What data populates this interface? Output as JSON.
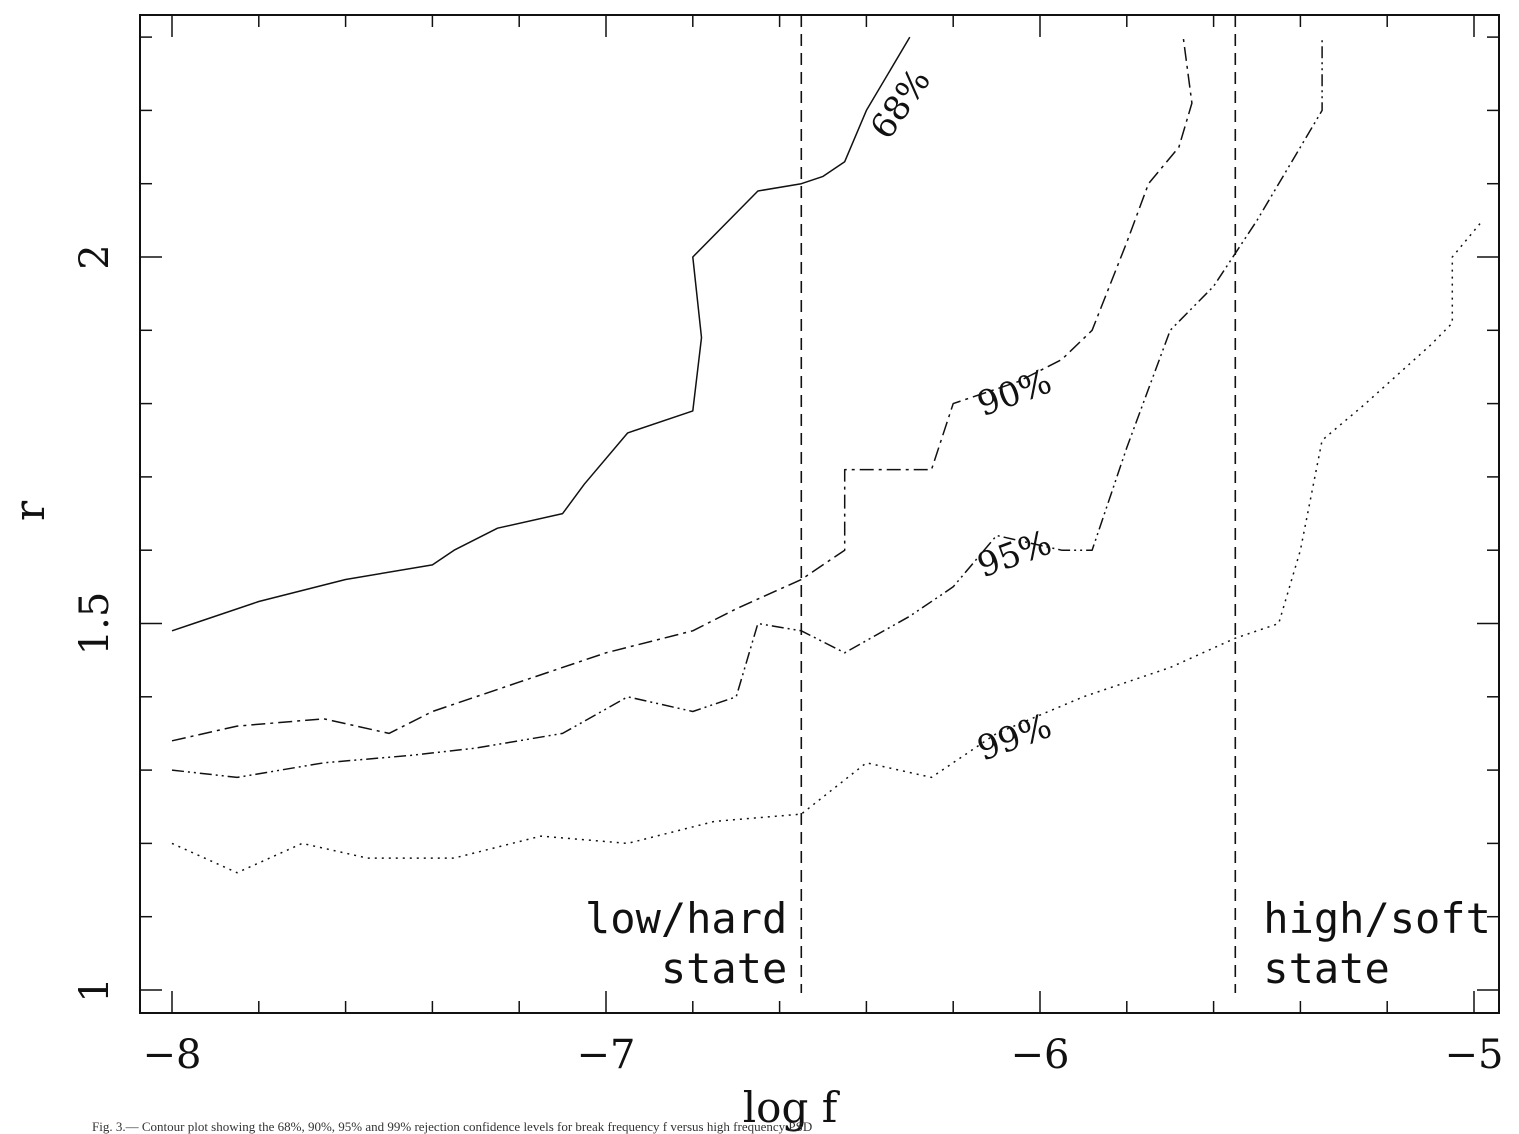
{
  "chart_data": {
    "type": "line",
    "xlabel": "log f",
    "ylabel": "r",
    "xlim": [
      -8.1,
      -4.95
    ],
    "ylim": [
      0.96,
      2.31
    ],
    "x_ticks": [
      -8,
      -7,
      -6,
      -5
    ],
    "x_tick_labels": [
      "-8",
      "-7",
      "-6",
      "-5"
    ],
    "y_ticks": [
      1,
      1.5,
      2
    ],
    "y_tick_labels": [
      "1",
      "1.5",
      "2"
    ],
    "grid": false,
    "legend": "none",
    "series": [
      {
        "name": "68%",
        "style": "solid",
        "label_at": [
          -6.3,
          2.2
        ],
        "points": [
          [
            -8,
            1.49
          ],
          [
            -7.95,
            1.5
          ],
          [
            -7.8,
            1.53
          ],
          [
            -7.6,
            1.56
          ],
          [
            -7.4,
            1.58
          ],
          [
            -7.35,
            1.6
          ],
          [
            -7.25,
            1.63
          ],
          [
            -7.1,
            1.65
          ],
          [
            -7.05,
            1.69
          ],
          [
            -6.95,
            1.76
          ],
          [
            -6.8,
            1.79
          ],
          [
            -6.78,
            1.89
          ],
          [
            -6.8,
            2.0
          ],
          [
            -6.65,
            2.09
          ],
          [
            -6.55,
            2.1
          ],
          [
            -6.5,
            2.11
          ],
          [
            -6.45,
            2.13
          ],
          [
            -6.4,
            2.2
          ],
          [
            -6.3,
            2.3
          ]
        ]
      },
      {
        "name": "90%",
        "style": "dashdot",
        "label_at": [
          -6.05,
          1.8
        ],
        "points": [
          [
            -8,
            1.34
          ],
          [
            -7.85,
            1.36
          ],
          [
            -7.65,
            1.37
          ],
          [
            -7.5,
            1.35
          ],
          [
            -7.4,
            1.38
          ],
          [
            -7.2,
            1.42
          ],
          [
            -7.0,
            1.46
          ],
          [
            -6.8,
            1.49
          ],
          [
            -6.7,
            1.52
          ],
          [
            -6.55,
            1.56
          ],
          [
            -6.45,
            1.6
          ],
          [
            -6.45,
            1.71
          ],
          [
            -6.25,
            1.71
          ],
          [
            -6.2,
            1.8
          ],
          [
            -6.05,
            1.83
          ],
          [
            -5.95,
            1.86
          ],
          [
            -5.88,
            1.9
          ],
          [
            -5.8,
            2.02
          ],
          [
            -5.75,
            2.1
          ],
          [
            -5.68,
            2.15
          ],
          [
            -5.65,
            2.21
          ],
          [
            -5.67,
            2.3
          ]
        ]
      },
      {
        "name": "95%",
        "style": "dashdotdot",
        "label_at": [
          -6.05,
          1.58
        ],
        "points": [
          [
            -8,
            1.3
          ],
          [
            -7.85,
            1.29
          ],
          [
            -7.65,
            1.31
          ],
          [
            -7.45,
            1.32
          ],
          [
            -7.3,
            1.33
          ],
          [
            -7.1,
            1.35
          ],
          [
            -6.95,
            1.4
          ],
          [
            -6.8,
            1.38
          ],
          [
            -6.7,
            1.4
          ],
          [
            -6.65,
            1.5
          ],
          [
            -6.55,
            1.49
          ],
          [
            -6.45,
            1.46
          ],
          [
            -6.3,
            1.51
          ],
          [
            -6.2,
            1.55
          ],
          [
            -6.1,
            1.62
          ],
          [
            -5.95,
            1.6
          ],
          [
            -5.88,
            1.6
          ],
          [
            -5.8,
            1.74
          ],
          [
            -5.75,
            1.82
          ],
          [
            -5.7,
            1.9
          ],
          [
            -5.6,
            1.96
          ],
          [
            -5.5,
            2.05
          ],
          [
            -5.4,
            2.15
          ],
          [
            -5.35,
            2.2
          ],
          [
            -5.35,
            2.3
          ]
        ]
      },
      {
        "name": "99%",
        "style": "dotted",
        "label_at": [
          -6.05,
          1.33
        ],
        "points": [
          [
            -8,
            1.2
          ],
          [
            -7.85,
            1.16
          ],
          [
            -7.7,
            1.2
          ],
          [
            -7.55,
            1.18
          ],
          [
            -7.35,
            1.18
          ],
          [
            -7.15,
            1.21
          ],
          [
            -6.95,
            1.2
          ],
          [
            -6.75,
            1.23
          ],
          [
            -6.55,
            1.24
          ],
          [
            -6.4,
            1.31
          ],
          [
            -6.25,
            1.29
          ],
          [
            -6.1,
            1.35
          ],
          [
            -5.9,
            1.4
          ],
          [
            -5.7,
            1.44
          ],
          [
            -5.55,
            1.48
          ],
          [
            -5.45,
            1.5
          ],
          [
            -5.4,
            1.6
          ],
          [
            -5.35,
            1.75
          ],
          [
            -5.25,
            1.8
          ],
          [
            -5.1,
            1.88
          ],
          [
            -5.05,
            1.91
          ],
          [
            -5.05,
            2.0
          ],
          [
            -4.98,
            2.05
          ]
        ]
      }
    ],
    "state_boundaries": [
      {
        "x": -6.55,
        "label_line1": "low/hard",
        "label_line2": "state",
        "anchor": "end"
      },
      {
        "x": -5.55,
        "label_line1": "high/soft",
        "label_line2": "state",
        "anchor": "start"
      }
    ]
  },
  "caption": "Fig. 3.— Contour plot showing the 68%, 90%, 95% and 99% rejection confidence levels for break frequency f versus high frequency PSD"
}
